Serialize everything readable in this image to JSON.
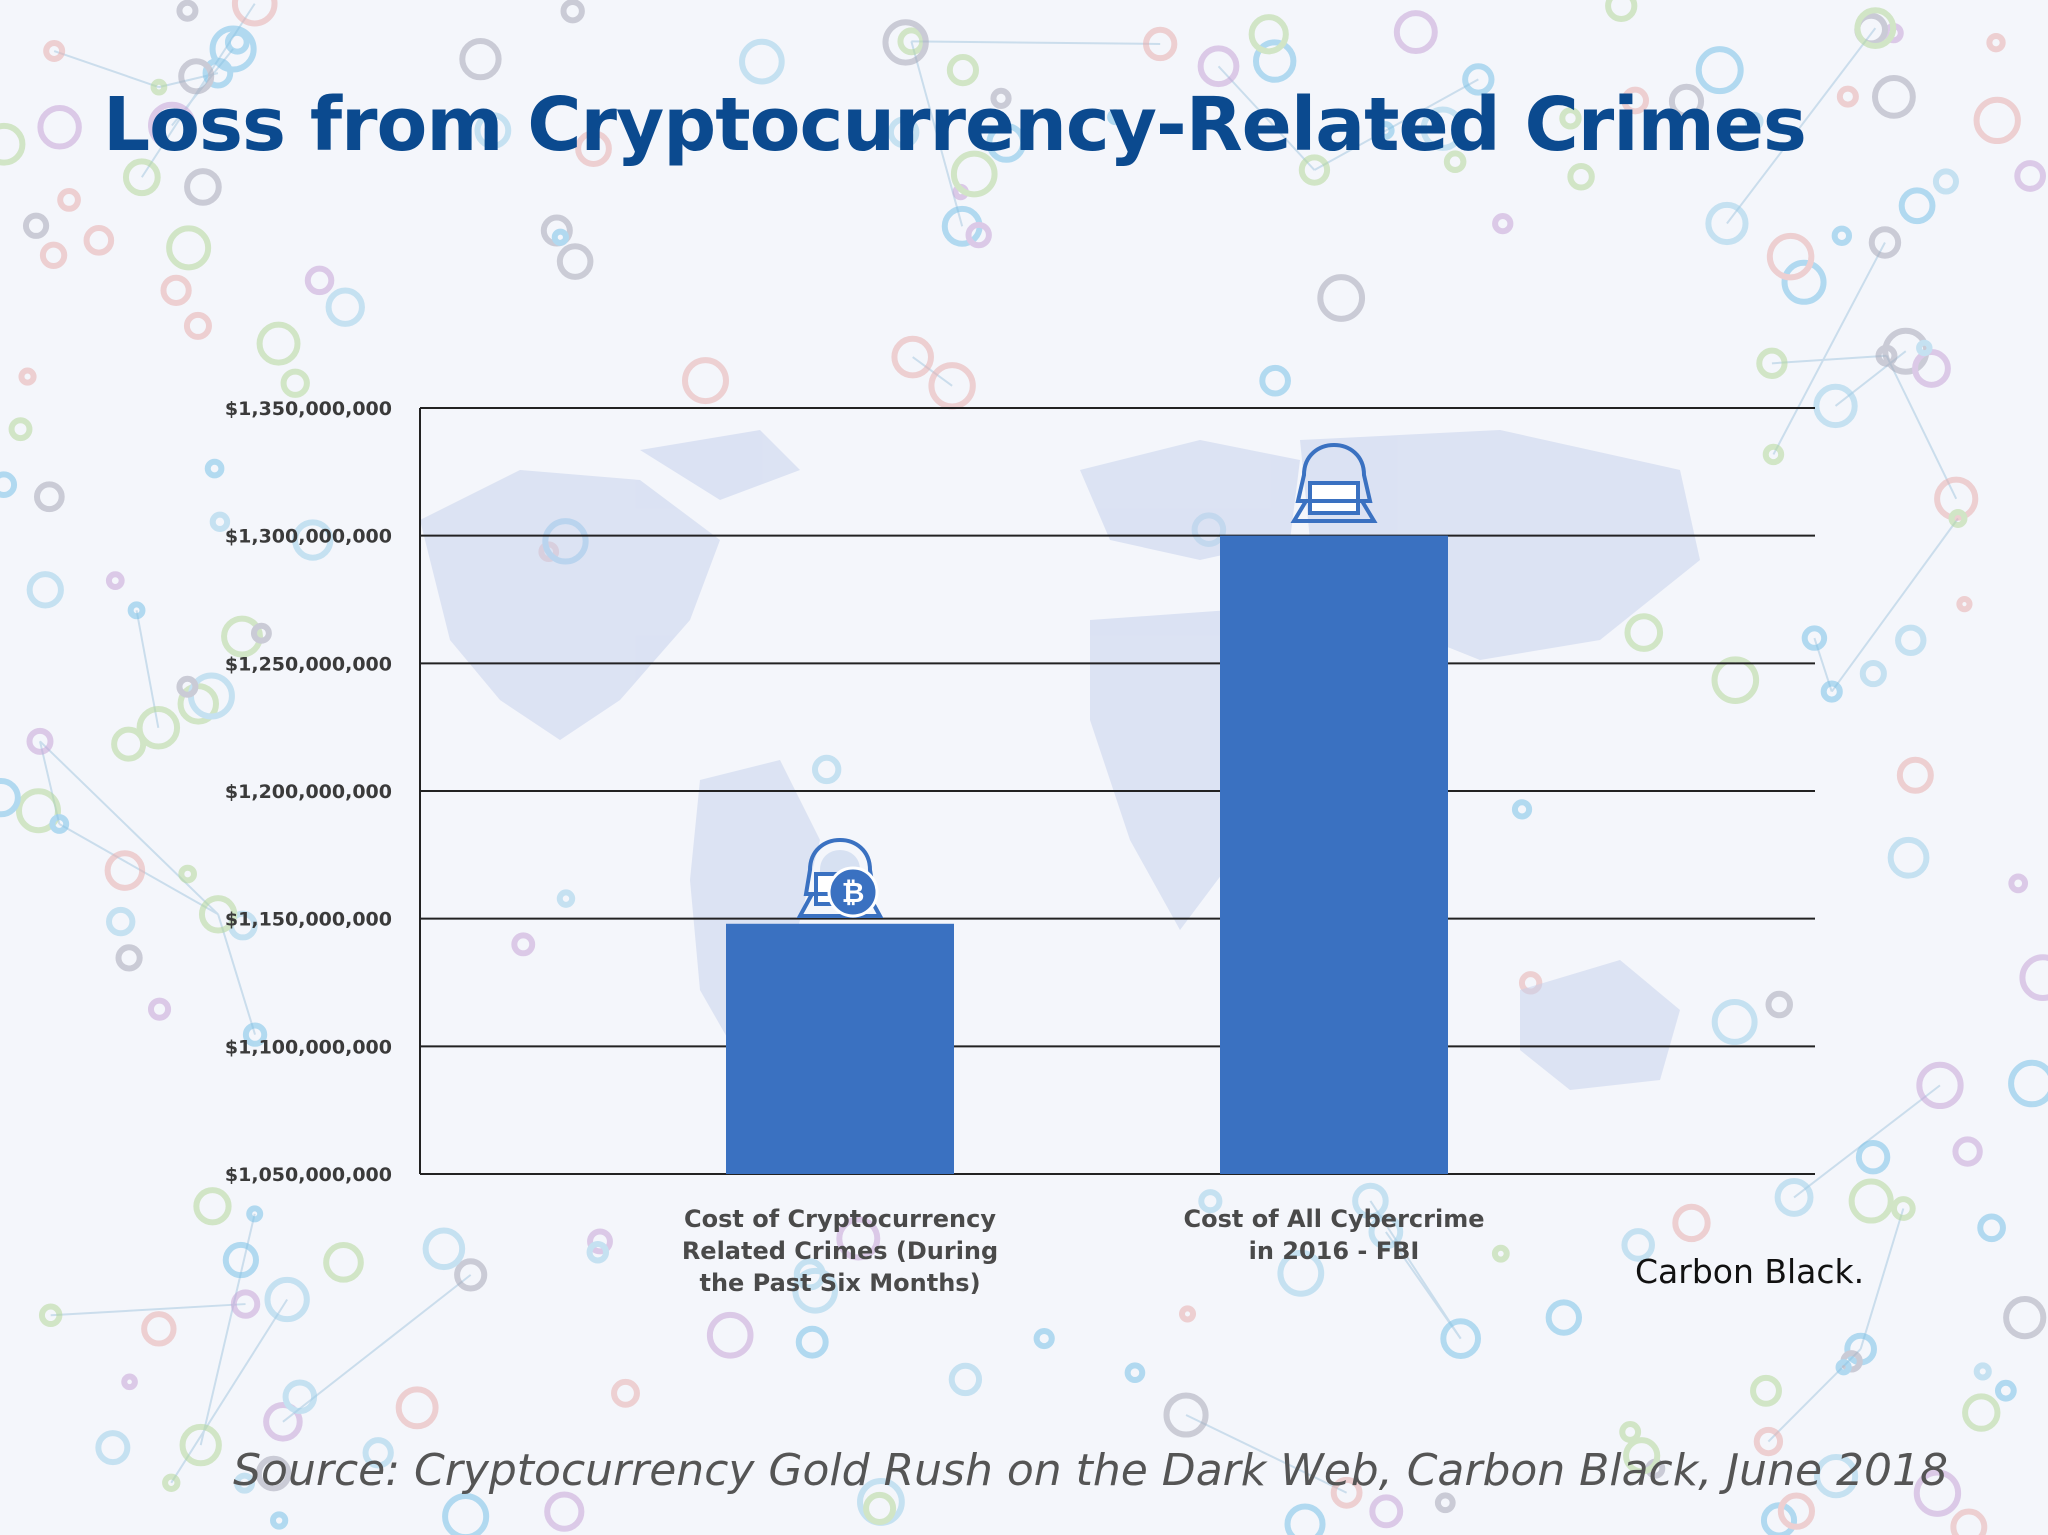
{
  "page": {
    "title": "Loss from Cryptocurrency-Related Crimes",
    "brand": "Carbon Black.",
    "source": "Source: Cryptocurrency Gold Rush on the Dark Web, Carbon Black, June 2018"
  },
  "icons": [
    "hacker-bitcoin-icon",
    "hacker-laptop-icon"
  ],
  "chart_data": {
    "type": "bar",
    "title": "",
    "xlabel": "",
    "ylabel": "",
    "categories": [
      [
        "Cost of Cryptocurrency",
        "Related Crimes (During",
        "the Past Six Months)"
      ],
      [
        "Cost of All Cybercrime",
        "in 2016 - FBI"
      ]
    ],
    "values": [
      1148000000,
      1300000000
    ],
    "ylim": [
      1050000000,
      1350000000
    ],
    "yticks": [
      1050000000,
      1100000000,
      1150000000,
      1200000000,
      1250000000,
      1300000000,
      1350000000
    ],
    "ytick_labels": [
      "$1,050,000,000",
      "$1,100,000,000",
      "$1,150,000,000",
      "$1,200,000,000",
      "$1,250,000,000",
      "$1,300,000,000",
      "$1,350,000,000"
    ],
    "grid": true,
    "legend": "none",
    "colors": {
      "bar": "#3a71c1",
      "grid": "#222222",
      "title": "#0b4a8f"
    }
  }
}
